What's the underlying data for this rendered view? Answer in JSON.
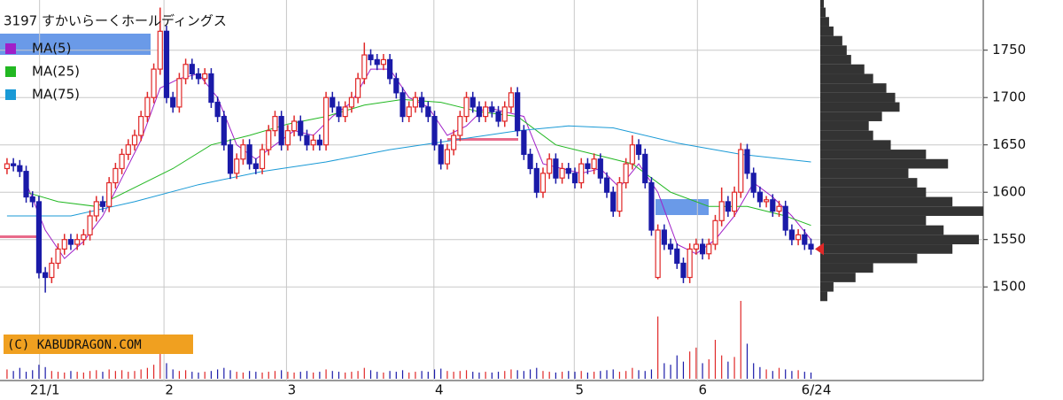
{
  "chart_data": {
    "type": "candlestick",
    "title": "3197 すかいらーくホールディングス",
    "watermark": "(C) KABUDRAGON.COM",
    "up_color": "#e02828",
    "down_color": "#1a1aa8",
    "grid": true,
    "ylim": [
      1403,
      1803
    ],
    "yticks": [
      1500,
      1550,
      1600,
      1650,
      1700,
      1750
    ],
    "xlim": [
      -1.1,
      153
    ],
    "xticks": [
      {
        "value": 5.1,
        "label": "21/1"
      },
      {
        "value": 24.6,
        "label": "2"
      },
      {
        "value": 43.8,
        "label": "3"
      },
      {
        "value": 66.9,
        "label": "4"
      },
      {
        "value": 88.9,
        "label": "5"
      },
      {
        "value": 108.2,
        "label": "6"
      },
      {
        "value": 126,
        "label": "6/24"
      }
    ],
    "candles": [
      [
        1625,
        1636,
        1619,
        1630
      ],
      [
        1630,
        1636,
        1622,
        1628
      ],
      [
        1628,
        1634,
        1616,
        1622
      ],
      [
        1622,
        1628,
        1589,
        1595
      ],
      [
        1595,
        1601,
        1584,
        1590
      ],
      [
        1590,
        1596,
        1509,
        1515
      ],
      [
        1515,
        1521,
        1494,
        1510
      ],
      [
        1510,
        1531,
        1504,
        1525
      ],
      [
        1525,
        1546,
        1519,
        1540
      ],
      [
        1540,
        1556,
        1534,
        1550
      ],
      [
        1550,
        1556,
        1539,
        1545
      ],
      [
        1545,
        1556,
        1539,
        1550
      ],
      [
        1550,
        1561,
        1544,
        1555
      ],
      [
        1555,
        1581,
        1549,
        1575
      ],
      [
        1575,
        1596,
        1569,
        1590
      ],
      [
        1590,
        1596,
        1579,
        1585
      ],
      [
        1585,
        1616,
        1579,
        1610
      ],
      [
        1610,
        1631,
        1604,
        1625
      ],
      [
        1625,
        1646,
        1619,
        1640
      ],
      [
        1640,
        1656,
        1634,
        1650
      ],
      [
        1650,
        1666,
        1644,
        1660
      ],
      [
        1660,
        1686,
        1654,
        1680
      ],
      [
        1680,
        1706,
        1674,
        1700
      ],
      [
        1700,
        1736,
        1694,
        1730
      ],
      [
        1730,
        1795,
        1724,
        1770
      ],
      [
        1770,
        1776,
        1694,
        1700
      ],
      [
        1700,
        1706,
        1684,
        1690
      ],
      [
        1690,
        1726,
        1684,
        1720
      ],
      [
        1720,
        1741,
        1714,
        1735
      ],
      [
        1735,
        1741,
        1719,
        1725
      ],
      [
        1725,
        1731,
        1714,
        1720
      ],
      [
        1720,
        1731,
        1714,
        1725
      ],
      [
        1725,
        1731,
        1689,
        1695
      ],
      [
        1695,
        1701,
        1674,
        1680
      ],
      [
        1680,
        1686,
        1644,
        1650
      ],
      [
        1650,
        1656,
        1614,
        1620
      ],
      [
        1620,
        1641,
        1614,
        1635
      ],
      [
        1635,
        1656,
        1629,
        1650
      ],
      [
        1650,
        1656,
        1624,
        1630
      ],
      [
        1630,
        1636,
        1619,
        1625
      ],
      [
        1625,
        1651,
        1619,
        1645
      ],
      [
        1645,
        1671,
        1639,
        1665
      ],
      [
        1665,
        1686,
        1659,
        1680
      ],
      [
        1680,
        1686,
        1644,
        1650
      ],
      [
        1650,
        1671,
        1644,
        1665
      ],
      [
        1665,
        1681,
        1659,
        1675
      ],
      [
        1675,
        1681,
        1654,
        1660
      ],
      [
        1660,
        1666,
        1644,
        1650
      ],
      [
        1650,
        1661,
        1644,
        1655
      ],
      [
        1655,
        1661,
        1644,
        1650
      ],
      [
        1650,
        1706,
        1644,
        1700
      ],
      [
        1700,
        1706,
        1684,
        1690
      ],
      [
        1690,
        1696,
        1674,
        1680
      ],
      [
        1680,
        1696,
        1674,
        1690
      ],
      [
        1690,
        1706,
        1684,
        1700
      ],
      [
        1700,
        1726,
        1694,
        1720
      ],
      [
        1720,
        1758,
        1714,
        1745
      ],
      [
        1745,
        1751,
        1734,
        1740
      ],
      [
        1740,
        1746,
        1729,
        1735
      ],
      [
        1735,
        1746,
        1729,
        1740
      ],
      [
        1740,
        1746,
        1714,
        1720
      ],
      [
        1720,
        1726,
        1699,
        1705
      ],
      [
        1705,
        1711,
        1674,
        1680
      ],
      [
        1680,
        1696,
        1674,
        1690
      ],
      [
        1690,
        1706,
        1684,
        1700
      ],
      [
        1700,
        1706,
        1684,
        1690
      ],
      [
        1690,
        1696,
        1674,
        1680
      ],
      [
        1680,
        1686,
        1644,
        1650
      ],
      [
        1650,
        1656,
        1624,
        1630
      ],
      [
        1630,
        1651,
        1624,
        1645
      ],
      [
        1645,
        1666,
        1639,
        1660
      ],
      [
        1660,
        1686,
        1654,
        1680
      ],
      [
        1680,
        1706,
        1674,
        1700
      ],
      [
        1700,
        1706,
        1684,
        1690
      ],
      [
        1690,
        1696,
        1674,
        1680
      ],
      [
        1680,
        1696,
        1674,
        1690
      ],
      [
        1690,
        1696,
        1679,
        1685
      ],
      [
        1685,
        1691,
        1669,
        1675
      ],
      [
        1675,
        1696,
        1669,
        1690
      ],
      [
        1690,
        1711,
        1684,
        1705
      ],
      [
        1705,
        1711,
        1659,
        1665
      ],
      [
        1665,
        1671,
        1634,
        1640
      ],
      [
        1640,
        1646,
        1619,
        1625
      ],
      [
        1625,
        1631,
        1594,
        1600
      ],
      [
        1600,
        1626,
        1594,
        1620
      ],
      [
        1620,
        1641,
        1614,
        1635
      ],
      [
        1635,
        1641,
        1609,
        1615
      ],
      [
        1615,
        1631,
        1609,
        1625
      ],
      [
        1625,
        1631,
        1614,
        1620
      ],
      [
        1620,
        1626,
        1604,
        1610
      ],
      [
        1610,
        1636,
        1604,
        1630
      ],
      [
        1630,
        1636,
        1619,
        1625
      ],
      [
        1625,
        1641,
        1619,
        1635
      ],
      [
        1635,
        1641,
        1609,
        1615
      ],
      [
        1615,
        1621,
        1594,
        1600
      ],
      [
        1600,
        1606,
        1574,
        1580
      ],
      [
        1580,
        1616,
        1574,
        1610
      ],
      [
        1610,
        1636,
        1604,
        1630
      ],
      [
        1630,
        1660,
        1624,
        1650
      ],
      [
        1650,
        1656,
        1634,
        1640
      ],
      [
        1640,
        1646,
        1604,
        1610
      ],
      [
        1610,
        1616,
        1554,
        1560
      ],
      [
        1510,
        1566,
        1508,
        1560
      ],
      [
        1560,
        1566,
        1539,
        1545
      ],
      [
        1545,
        1551,
        1534,
        1540
      ],
      [
        1540,
        1546,
        1519,
        1525
      ],
      [
        1525,
        1531,
        1504,
        1510
      ],
      [
        1510,
        1546,
        1504,
        1540
      ],
      [
        1540,
        1551,
        1534,
        1545
      ],
      [
        1545,
        1551,
        1529,
        1535
      ],
      [
        1535,
        1551,
        1529,
        1545
      ],
      [
        1545,
        1576,
        1539,
        1570
      ],
      [
        1570,
        1605,
        1564,
        1590
      ],
      [
        1590,
        1596,
        1574,
        1580
      ],
      [
        1580,
        1606,
        1574,
        1600
      ],
      [
        1600,
        1652,
        1594,
        1645
      ],
      [
        1645,
        1651,
        1614,
        1620
      ],
      [
        1620,
        1626,
        1594,
        1600
      ],
      [
        1600,
        1606,
        1584,
        1590
      ],
      [
        1590,
        1596,
        1584,
        1592
      ],
      [
        1592,
        1598,
        1574,
        1580
      ],
      [
        1580,
        1591,
        1574,
        1585
      ],
      [
        1585,
        1591,
        1554,
        1560
      ],
      [
        1560,
        1566,
        1544,
        1550
      ],
      [
        1550,
        1561,
        1544,
        1555
      ],
      [
        1555,
        1561,
        1539,
        1545
      ],
      [
        1545,
        1551,
        1534,
        1540
      ]
    ],
    "vlim": [
      0,
      100
    ],
    "volumes": [
      12,
      10,
      14,
      9,
      11,
      18,
      15,
      10,
      9,
      8,
      10,
      9,
      8,
      10,
      11,
      9,
      12,
      10,
      11,
      9,
      10,
      12,
      14,
      18,
      32,
      20,
      12,
      10,
      11,
      9,
      8,
      9,
      10,
      12,
      14,
      11,
      9,
      8,
      10,
      9,
      8,
      9,
      10,
      11,
      9,
      8,
      9,
      10,
      8,
      9,
      12,
      10,
      9,
      8,
      9,
      10,
      14,
      11,
      9,
      8,
      10,
      9,
      11,
      8,
      9,
      10,
      9,
      12,
      13,
      10,
      9,
      10,
      11,
      9,
      8,
      9,
      8,
      9,
      10,
      12,
      11,
      10,
      12,
      14,
      10,
      9,
      8,
      9,
      10,
      9,
      10,
      8,
      9,
      10,
      11,
      12,
      9,
      10,
      14,
      11,
      10,
      12,
      80,
      20,
      18,
      30,
      22,
      35,
      40,
      20,
      25,
      50,
      30,
      22,
      28,
      100,
      45,
      20,
      15,
      12,
      10,
      14,
      12,
      10,
      11,
      9,
      8
    ],
    "ma": [
      {
        "name": "MA(5)",
        "color": "#a020c8",
        "x": [
          3,
          6,
          9,
          12,
          15,
          18,
          21,
          24,
          27,
          30,
          33,
          36,
          39,
          42,
          45,
          48,
          51,
          54,
          57,
          60,
          63,
          66,
          69,
          72,
          75,
          78,
          81,
          84,
          87,
          90,
          93,
          96,
          99,
          102,
          105,
          108,
          111,
          114,
          117,
          120,
          123,
          126
        ],
        "values": [
          1610,
          1560,
          1530,
          1548,
          1575,
          1615,
          1655,
          1710,
          1720,
          1725,
          1700,
          1650,
          1635,
          1650,
          1665,
          1660,
          1680,
          1695,
          1730,
          1730,
          1700,
          1690,
          1660,
          1670,
          1690,
          1685,
          1680,
          1630,
          1625,
          1620,
          1625,
          1605,
          1630,
          1600,
          1545,
          1535,
          1550,
          1575,
          1610,
          1595,
          1575,
          1550
        ]
      },
      {
        "name": "MA(25)",
        "color": "#22b822",
        "x": [
          3,
          8,
          14,
          20,
          26,
          32,
          38,
          44,
          50,
          56,
          62,
          68,
          74,
          80,
          86,
          92,
          98,
          104,
          110,
          116,
          122,
          126
        ],
        "values": [
          1600,
          1590,
          1585,
          1605,
          1625,
          1650,
          1660,
          1672,
          1680,
          1692,
          1698,
          1695,
          1685,
          1680,
          1650,
          1640,
          1630,
          1600,
          1585,
          1585,
          1575,
          1565
        ]
      },
      {
        "name": "MA(75)",
        "color": "#1a9ad6",
        "x": [
          0,
          10,
          20,
          30,
          40,
          50,
          60,
          70,
          80,
          88,
          95,
          105,
          115,
          126
        ],
        "values": [
          1575,
          1575,
          1590,
          1608,
          1622,
          1632,
          1645,
          1655,
          1665,
          1670,
          1668,
          1652,
          1640,
          1632
        ]
      }
    ],
    "profile": {
      "color": "#333333",
      "xlim": [
        0,
        185
      ],
      "levels": [
        1490,
        1500,
        1510,
        1520,
        1530,
        1540,
        1550,
        1560,
        1570,
        1580,
        1590,
        1600,
        1610,
        1620,
        1630,
        1640,
        1650,
        1660,
        1670,
        1680,
        1690,
        1700,
        1710,
        1720,
        1730,
        1740,
        1750,
        1760,
        1770,
        1780,
        1790,
        1800
      ],
      "values": [
        8,
        15,
        40,
        60,
        110,
        150,
        180,
        140,
        120,
        185,
        150,
        120,
        110,
        100,
        145,
        120,
        80,
        60,
        55,
        70,
        90,
        85,
        75,
        60,
        50,
        35,
        30,
        25,
        15,
        10,
        6,
        4
      ]
    }
  }
}
